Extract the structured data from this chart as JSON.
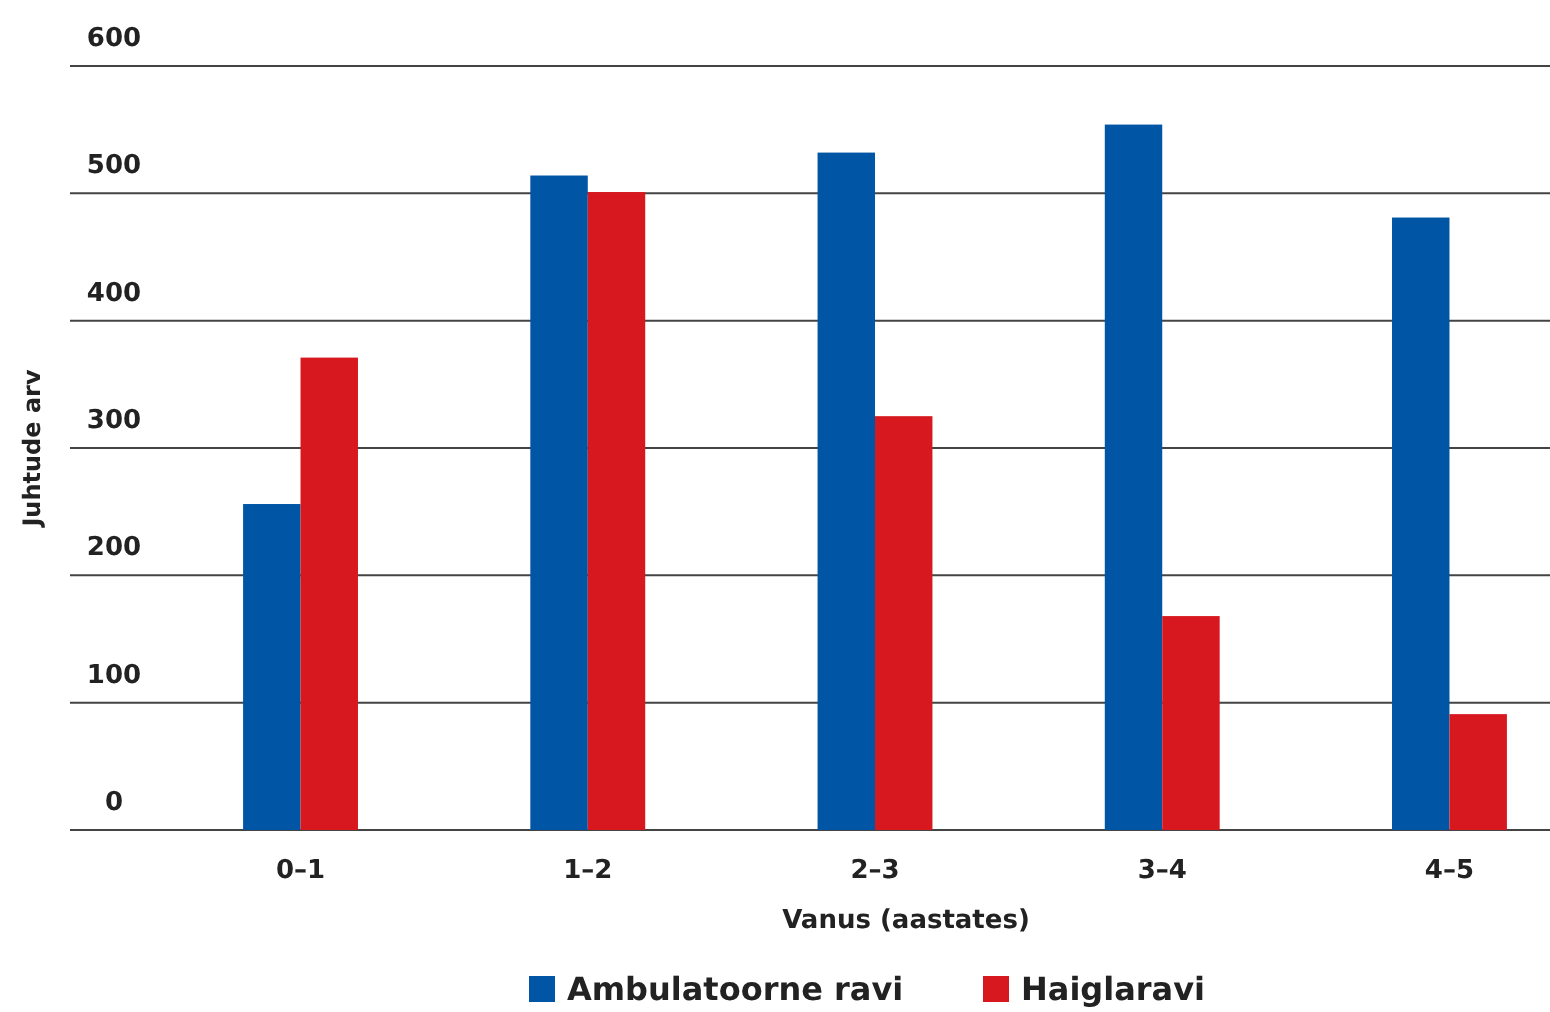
{
  "chart_data": {
    "type": "bar",
    "xlabel": "Vanus (aastates)",
    "ylabel": "Juhtude arv",
    "categories": [
      "0–1",
      "1–2",
      "2–3",
      "3–4",
      "4–5"
    ],
    "series": [
      {
        "name": "Ambulatoorne ravi",
        "color": "#0055a5",
        "values": [
          256,
          514,
          532,
          554,
          481
        ]
      },
      {
        "name": "Haiglaravi",
        "color": "#d7191f",
        "values": [
          371,
          501,
          325,
          168,
          91
        ]
      }
    ],
    "ylim": [
      0,
      600
    ],
    "yticks": [
      0,
      100,
      200,
      300,
      400,
      500,
      600
    ],
    "grid": "y",
    "legend": "bottom"
  }
}
